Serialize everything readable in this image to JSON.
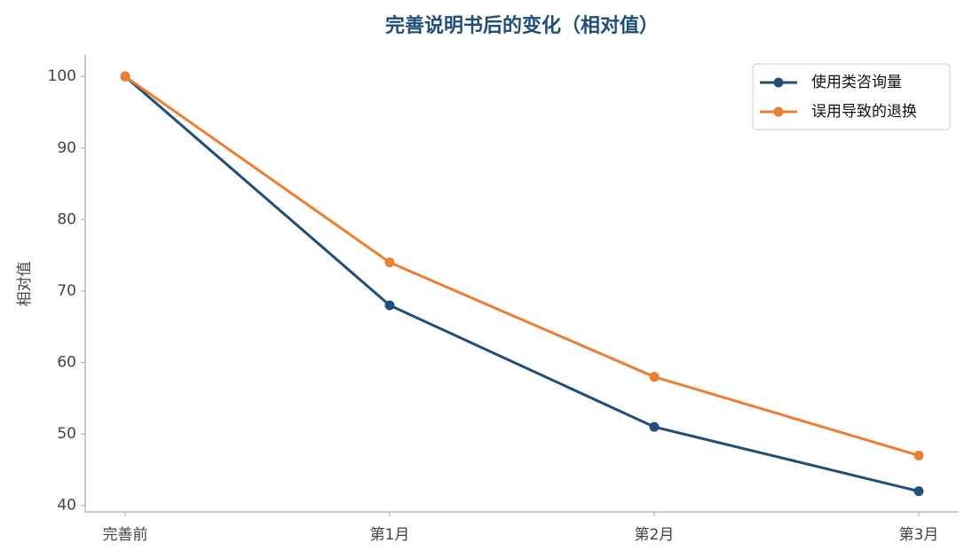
{
  "chart_data": {
    "type": "line",
    "title": "完善说明书后的变化（相对值）",
    "y_label": "相对值",
    "categories": [
      "完善前",
      "第1月",
      "第2月",
      "第3月"
    ],
    "series": [
      {
        "name": "使用类咨询量",
        "color": "#1f4e79",
        "values": [
          100,
          68,
          51,
          42
        ]
      },
      {
        "name": "误用导致的退换",
        "color": "#ed7d31",
        "values": [
          100,
          74,
          58,
          47
        ]
      }
    ],
    "ylim": [
      39.1,
      103
    ],
    "yticks": [
      40,
      50,
      60,
      70,
      80,
      90,
      100
    ],
    "grid": false,
    "legend": "upper right"
  }
}
